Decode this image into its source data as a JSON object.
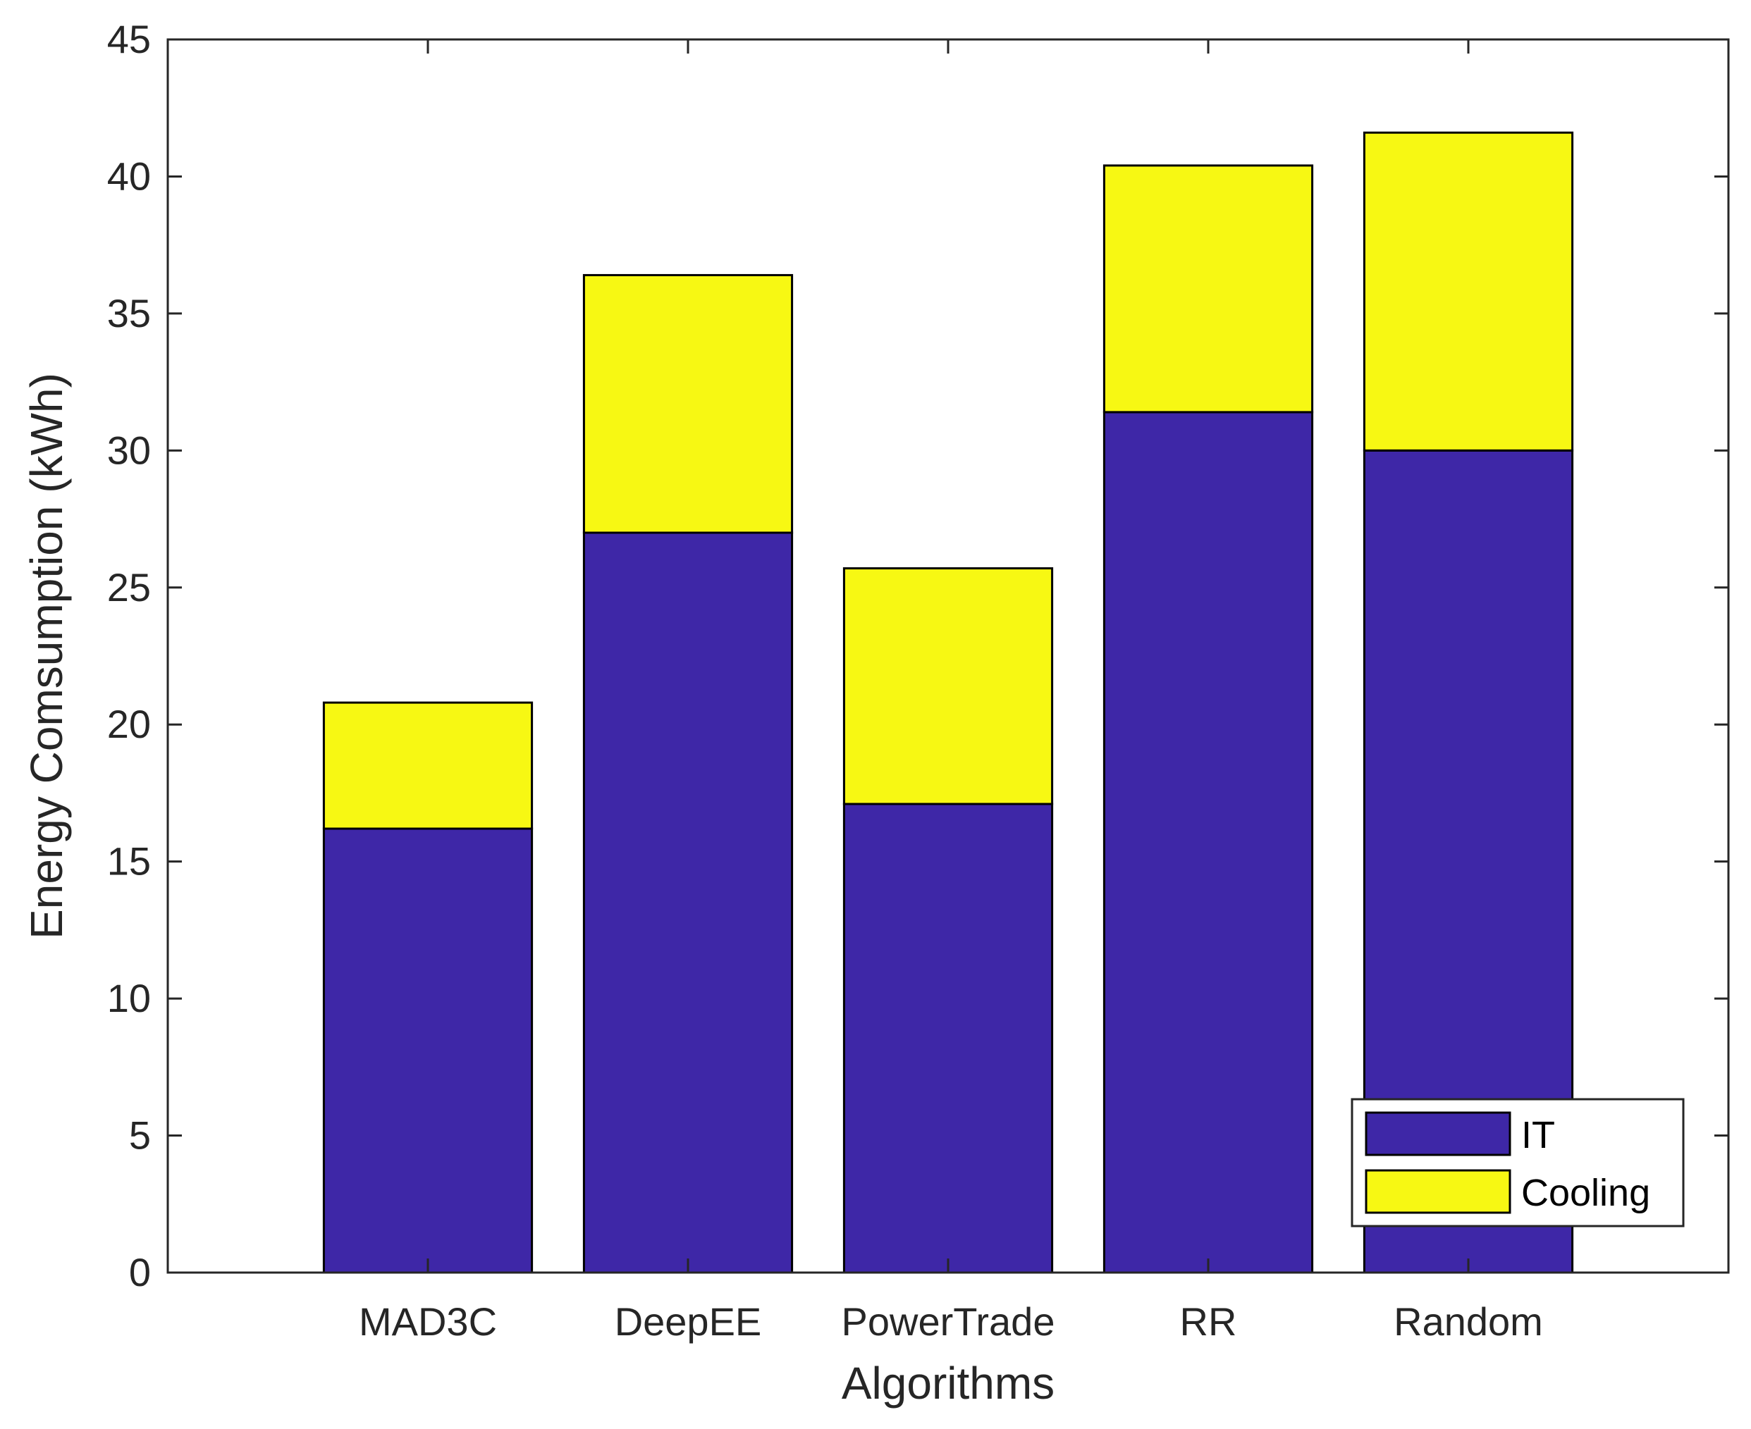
{
  "chart_data": {
    "type": "bar",
    "stacked": true,
    "title": "",
    "xlabel": "Algorithms",
    "ylabel": "Energy Comsumption (kWh)",
    "categories": [
      "MAD3C",
      "DeepEE",
      "PowerTrade",
      "RR",
      "Random"
    ],
    "series": [
      {
        "name": "IT",
        "color": "#3e27a7",
        "values": [
          16.2,
          27.0,
          17.1,
          31.4,
          30.0
        ]
      },
      {
        "name": "Cooling",
        "color": "#f7f813",
        "values": [
          4.6,
          9.4,
          8.6,
          9.0,
          11.6
        ]
      }
    ],
    "xlim": [
      0,
      6
    ],
    "ylim": [
      0,
      45
    ],
    "yticks": [
      "0",
      "5",
      "10",
      "15",
      "20",
      "25",
      "30",
      "35",
      "40",
      "45"
    ],
    "grid": false,
    "legend_position": "bottom-right"
  }
}
